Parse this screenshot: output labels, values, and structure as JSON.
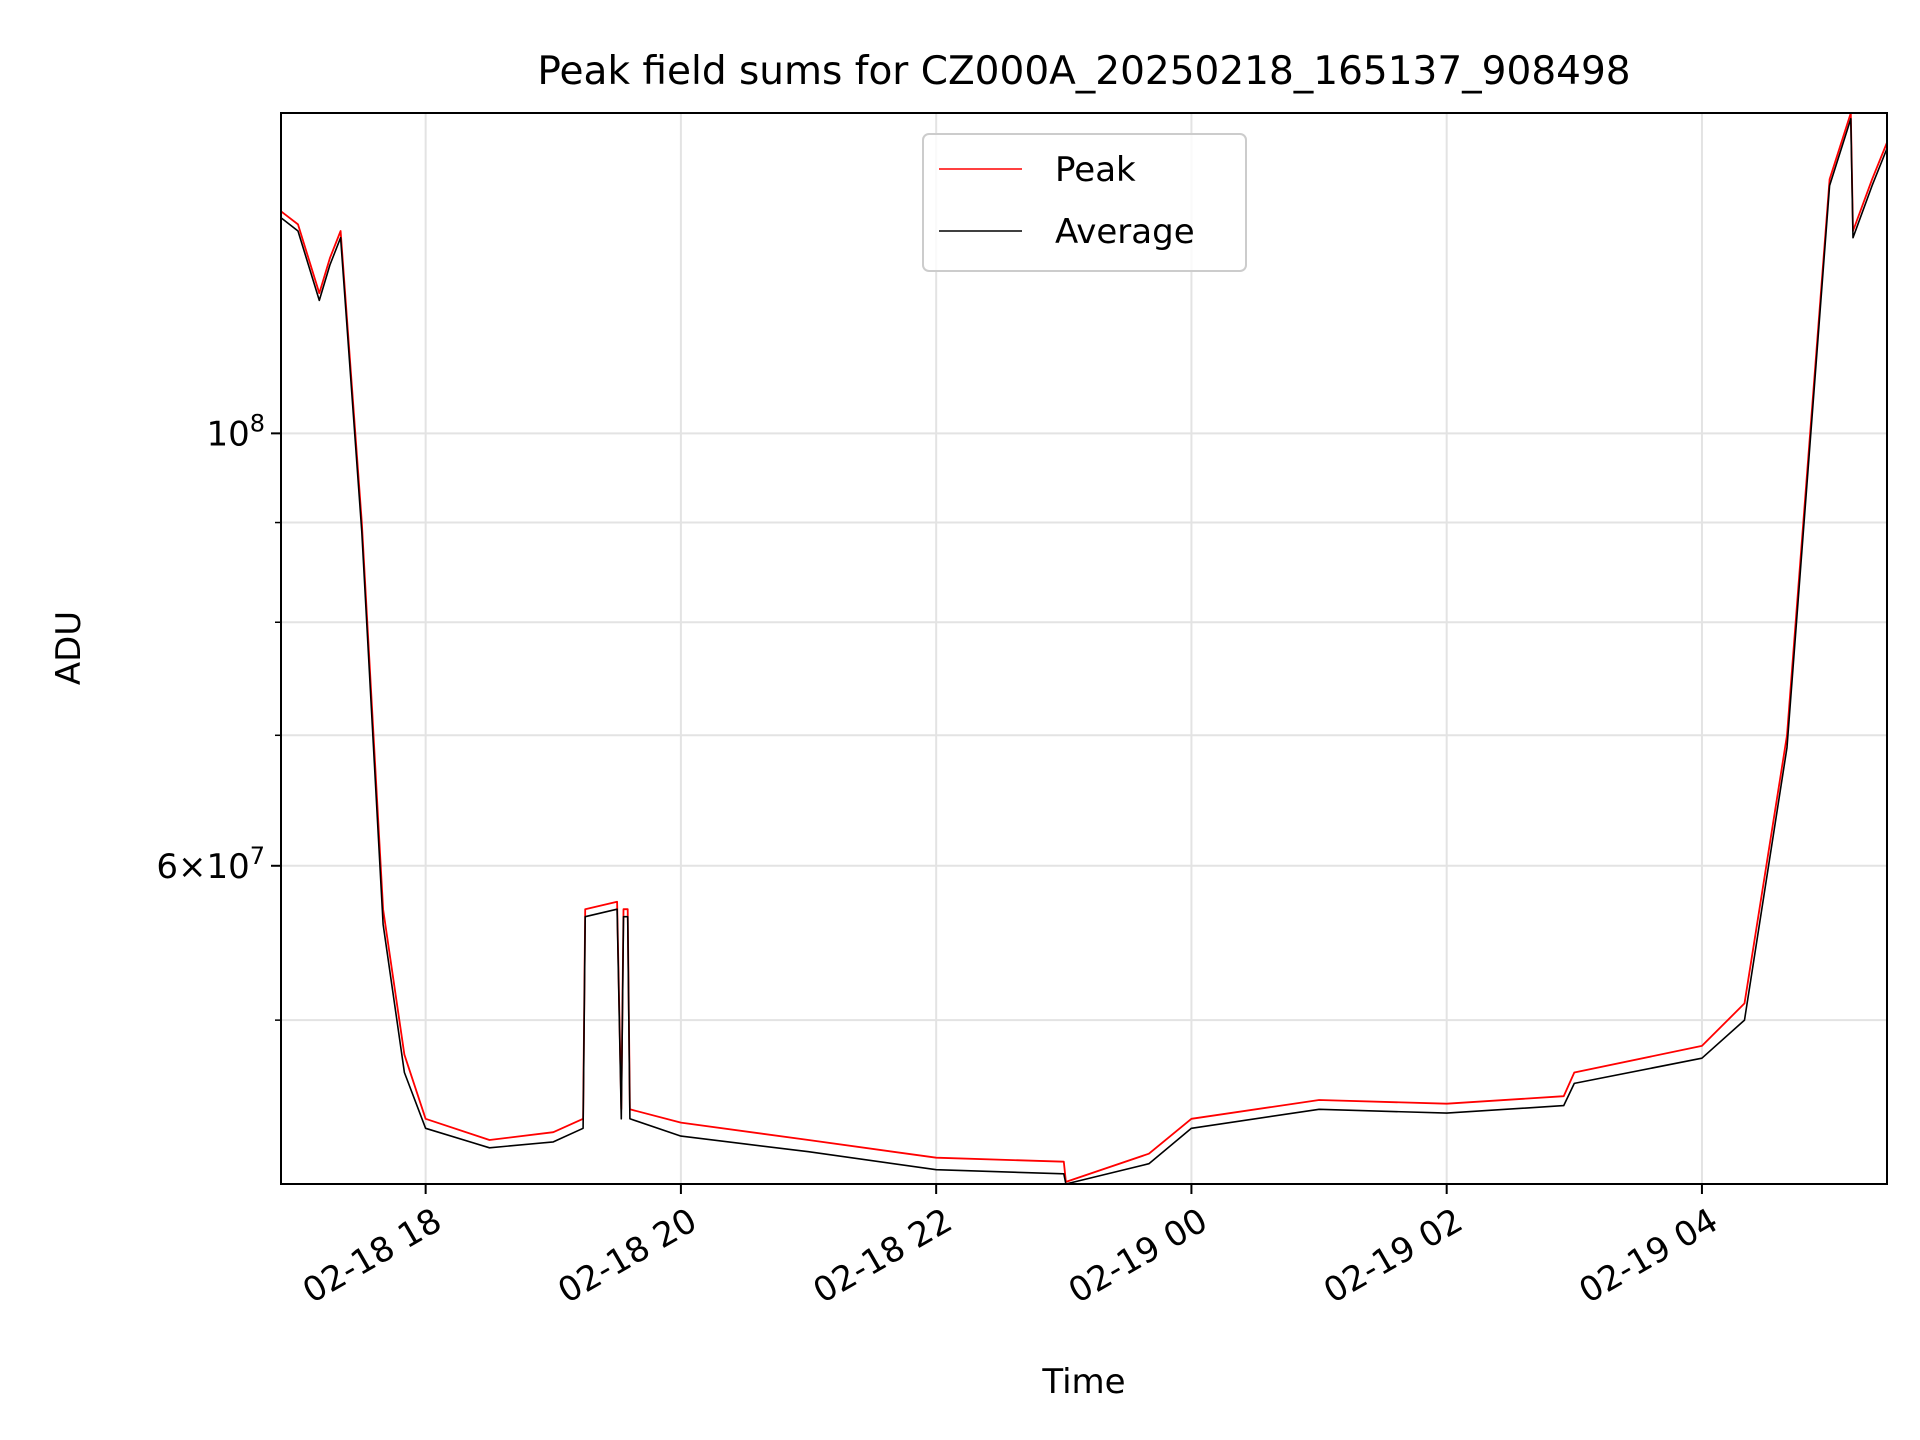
{
  "chart_data": {
    "type": "line",
    "title": "Peak field sums for CZ000A_20250218_165137_908498",
    "xlabel": "Time",
    "ylabel": "ADU",
    "y_scale": "log",
    "grid": true,
    "legend_position": "top-center",
    "xlim": [
      "2025-02-18 16:52",
      "2025-02-19 05:27"
    ],
    "ylim": [
      41200000,
      146000000
    ],
    "x_ticks": [
      {
        "value": "2025-02-18 18:00",
        "label": "02-18 18"
      },
      {
        "value": "2025-02-18 20:00",
        "label": "02-18 20"
      },
      {
        "value": "2025-02-18 22:00",
        "label": "02-18 22"
      },
      {
        "value": "2025-02-19 00:00",
        "label": "02-19 00"
      },
      {
        "value": "2025-02-19 02:00",
        "label": "02-19 02"
      },
      {
        "value": "2025-02-19 04:00",
        "label": "02-19 04"
      }
    ],
    "y_major_ticks": [
      {
        "value": 100000000,
        "base": "10",
        "exp": "8"
      },
      {
        "value": 60000000,
        "mant": "6",
        "base": "10",
        "exp": "7"
      }
    ],
    "y_minor_ticks": [
      50000000,
      70000000,
      80000000,
      90000000
    ],
    "series": [
      {
        "name": "Peak",
        "color": "#ff0000",
        "x": [
          "2025-02-18 16:52",
          "2025-02-18 17:00",
          "2025-02-18 17:10",
          "2025-02-18 17:15",
          "2025-02-18 17:20",
          "2025-02-18 17:30",
          "2025-02-18 17:40",
          "2025-02-18 17:50",
          "2025-02-18 18:00",
          "2025-02-18 18:30",
          "2025-02-18 19:00",
          "2025-02-18 19:14",
          "2025-02-18 19:15",
          "2025-02-18 19:30",
          "2025-02-18 19:32",
          "2025-02-18 19:33",
          "2025-02-18 19:35",
          "2025-02-18 19:36",
          "2025-02-18 20:00",
          "2025-02-18 21:00",
          "2025-02-18 22:00",
          "2025-02-18 23:00",
          "2025-02-18 23:01",
          "2025-02-18 23:40",
          "2025-02-19 00:00",
          "2025-02-19 01:00",
          "2025-02-19 02:00",
          "2025-02-19 02:55",
          "2025-02-19 03:00",
          "2025-02-19 04:00",
          "2025-02-19 04:20",
          "2025-02-19 04:40",
          "2025-02-19 05:00",
          "2025-02-19 05:10",
          "2025-02-19 05:11",
          "2025-02-19 05:20",
          "2025-02-19 05:27"
        ],
        "values": [
          130000000,
          128000000,
          118000000,
          123000000,
          127000000,
          90000000,
          57000000,
          48000000,
          44500000,
          43400000,
          43800000,
          44500000,
          57000000,
          57500000,
          45000000,
          57000000,
          57000000,
          45000000,
          44300000,
          43400000,
          42500000,
          42300000,
          41300000,
          42700000,
          44500000,
          45500000,
          45300000,
          45700000,
          47000000,
          48500000,
          51000000,
          70000000,
          135000000,
          146000000,
          127000000,
          135000000,
          141000000
        ]
      },
      {
        "name": "Average",
        "color": "#000000",
        "x": [
          "2025-02-18 16:52",
          "2025-02-18 17:00",
          "2025-02-18 17:10",
          "2025-02-18 17:15",
          "2025-02-18 17:20",
          "2025-02-18 17:30",
          "2025-02-18 17:40",
          "2025-02-18 17:50",
          "2025-02-18 18:00",
          "2025-02-18 18:30",
          "2025-02-18 19:00",
          "2025-02-18 19:14",
          "2025-02-18 19:15",
          "2025-02-18 19:30",
          "2025-02-18 19:32",
          "2025-02-18 19:33",
          "2025-02-18 19:35",
          "2025-02-18 19:36",
          "2025-02-18 20:00",
          "2025-02-18 21:00",
          "2025-02-18 22:00",
          "2025-02-18 23:00",
          "2025-02-18 23:01",
          "2025-02-18 23:40",
          "2025-02-19 00:00",
          "2025-02-19 01:00",
          "2025-02-19 02:00",
          "2025-02-19 02:55",
          "2025-02-19 03:00",
          "2025-02-19 04:00",
          "2025-02-19 04:20",
          "2025-02-19 04:40",
          "2025-02-19 05:00",
          "2025-02-19 05:10",
          "2025-02-19 05:11",
          "2025-02-19 05:20",
          "2025-02-19 05:27"
        ],
        "values": [
          129000000,
          127000000,
          117000000,
          122000000,
          126000000,
          89000000,
          56000000,
          47000000,
          44000000,
          43000000,
          43300000,
          44000000,
          56500000,
          57000000,
          44500000,
          56500000,
          56500000,
          44500000,
          43600000,
          42800000,
          41900000,
          41700000,
          41200000,
          42200000,
          44000000,
          45000000,
          44800000,
          45200000,
          46400000,
          47800000,
          50000000,
          69000000,
          134000000,
          145000000,
          126000000,
          134000000,
          140000000
        ]
      }
    ]
  }
}
